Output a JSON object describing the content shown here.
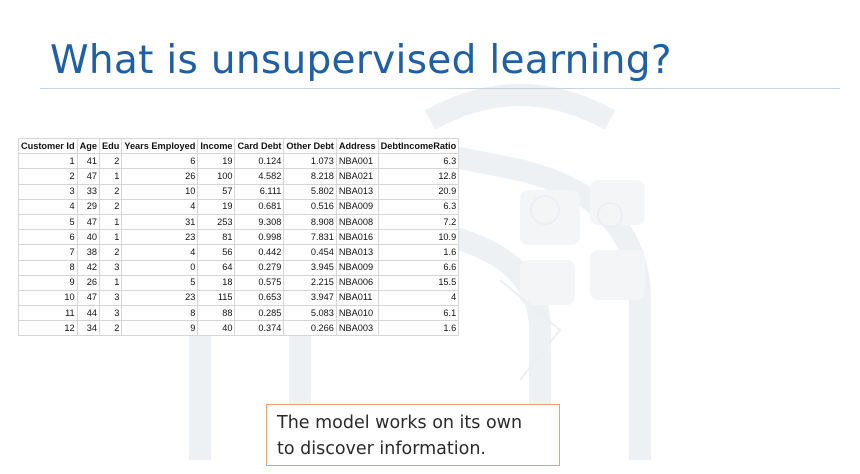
{
  "slide": {
    "title": "What is unsupervised learning?"
  },
  "table": {
    "columns": [
      "Customer Id",
      "Age",
      "Edu",
      "Years Employed",
      "Income",
      "Card Debt",
      "Other Debt",
      "Address",
      "DebtIncomeRatio"
    ],
    "rows": [
      [
        "1",
        "41",
        "2",
        "6",
        "19",
        "0.124",
        "1.073",
        "NBA001",
        "6.3"
      ],
      [
        "2",
        "47",
        "1",
        "26",
        "100",
        "4.582",
        "8.218",
        "NBA021",
        "12.8"
      ],
      [
        "3",
        "33",
        "2",
        "10",
        "57",
        "6.111",
        "5.802",
        "NBA013",
        "20.9"
      ],
      [
        "4",
        "29",
        "2",
        "4",
        "19",
        "0.681",
        "0.516",
        "NBA009",
        "6.3"
      ],
      [
        "5",
        "47",
        "1",
        "31",
        "253",
        "9.308",
        "8.908",
        "NBA008",
        "7.2"
      ],
      [
        "6",
        "40",
        "1",
        "23",
        "81",
        "0.998",
        "7.831",
        "NBA016",
        "10.9"
      ],
      [
        "7",
        "38",
        "2",
        "4",
        "56",
        "0.442",
        "0.454",
        "NBA013",
        "1.6"
      ],
      [
        "8",
        "42",
        "3",
        "0",
        "64",
        "0.279",
        "3.945",
        "NBA009",
        "6.6"
      ],
      [
        "9",
        "26",
        "1",
        "5",
        "18",
        "0.575",
        "2.215",
        "NBA006",
        "15.5"
      ],
      [
        "10",
        "47",
        "3",
        "23",
        "115",
        "0.653",
        "3.947",
        "NBA011",
        "4"
      ],
      [
        "11",
        "44",
        "3",
        "8",
        "88",
        "0.285",
        "5.083",
        "NBA010",
        "6.1"
      ],
      [
        "12",
        "34",
        "2",
        "9",
        "40",
        "0.374",
        "0.266",
        "NBA003",
        "1.6"
      ]
    ]
  },
  "note": {
    "line1": "The model works on its own",
    "line2": "to discover information."
  },
  "colors": {
    "title": "#1f5fa5",
    "note_border": "#f0a070",
    "watermark": "#eef1f4"
  }
}
